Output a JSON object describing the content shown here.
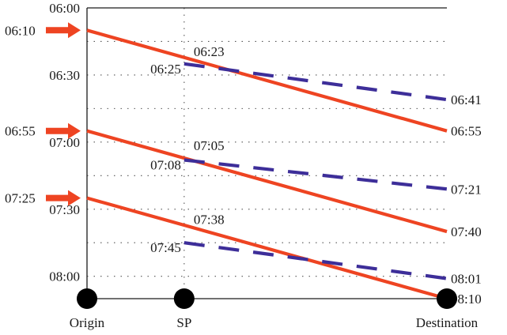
{
  "chart_data": {
    "type": "line",
    "y_axis": {
      "reversed": true,
      "range": [
        "06:00",
        "08:10"
      ],
      "ticks": [
        "06:00",
        "06:30",
        "07:00",
        "07:30",
        "08:00"
      ],
      "grid": "dotted"
    },
    "x_axis": {
      "range": [
        0,
        1
      ],
      "stations": [
        {
          "label": "Origin",
          "x": 0
        },
        {
          "label": "SP",
          "x": 0.27
        },
        {
          "label": "Destination",
          "x": 1
        }
      ]
    },
    "series": [
      {
        "style": "solid",
        "color": "#ee4422",
        "arrow_label": "06:10",
        "points": [
          {
            "x": 0,
            "y": "06:10"
          },
          {
            "x": 1,
            "y": "06:55"
          }
        ],
        "sp_label": "06:23",
        "end_label": "06:55"
      },
      {
        "style": "solid",
        "color": "#ee4422",
        "arrow_label": "06:55",
        "points": [
          {
            "x": 0,
            "y": "06:55"
          },
          {
            "x": 1,
            "y": "07:40"
          }
        ],
        "sp_label": "07:05",
        "end_label": "07:40"
      },
      {
        "style": "solid",
        "color": "#ee4422",
        "arrow_label": "07:25",
        "points": [
          {
            "x": 0,
            "y": "07:25"
          },
          {
            "x": 1,
            "y": "08:10"
          }
        ],
        "sp_label": "07:38",
        "end_label": "08:10"
      },
      {
        "style": "dashed",
        "color": "#3d2e99",
        "points": [
          {
            "x": 0.27,
            "y": "06:25"
          },
          {
            "x": 1,
            "y": "06:41"
          }
        ],
        "start_label": "06:25",
        "end_label": "06:41"
      },
      {
        "style": "dashed",
        "color": "#3d2e99",
        "points": [
          {
            "x": 0.27,
            "y": "07:08"
          },
          {
            "x": 1,
            "y": "07:21"
          }
        ],
        "start_label": "07:08",
        "end_label": "07:21"
      },
      {
        "style": "dashed",
        "color": "#3d2e99",
        "points": [
          {
            "x": 0.27,
            "y": "07:45"
          },
          {
            "x": 1,
            "y": "08:01"
          }
        ],
        "start_label": "07:45",
        "end_label": "08:01"
      }
    ]
  }
}
